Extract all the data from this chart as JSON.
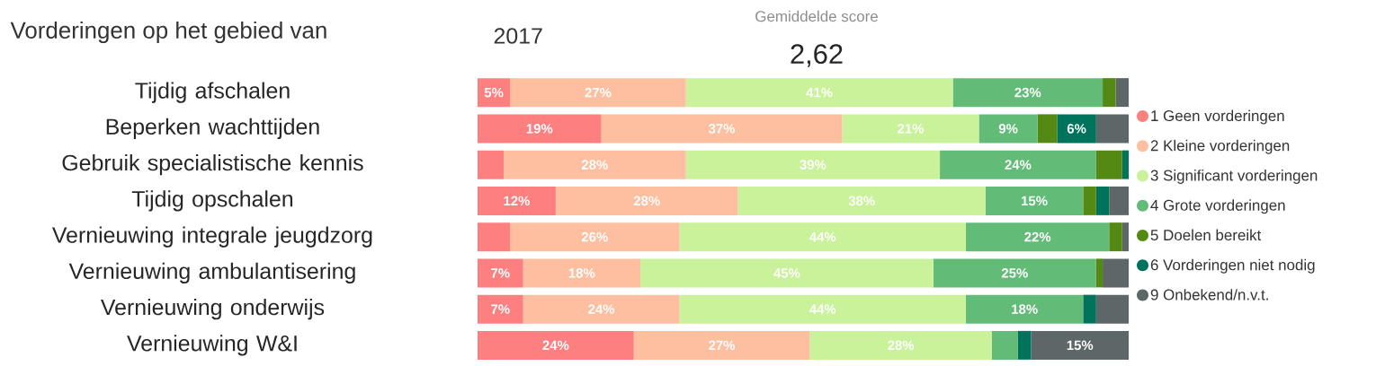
{
  "chart_data": {
    "type": "bar",
    "orientation": "horizontal",
    "stacked": true,
    "title": "Vorderingen op het gebied van",
    "subtitle": "2017",
    "annotations": [
      "Gemiddelde score",
      "2,62"
    ],
    "categories": [
      "Tijdig afschalen",
      "Beperken wachttijden",
      "Gebruik specialistische kennis",
      "Tijdig opschalen",
      "Vernieuwing integrale jeugdzorg",
      "Vernieuwing ambulantisering",
      "Vernieuwing onderwijs",
      "Vernieuwing W&I"
    ],
    "series": [
      {
        "name": "1 Geen vorderingen",
        "color": "#fd7f7f",
        "values": [
          5,
          19,
          4,
          12,
          5,
          7,
          7,
          24
        ],
        "value_labels": [
          "5%",
          "19%",
          null,
          "12%",
          null,
          "7%",
          "7%",
          "24%"
        ]
      },
      {
        "name": "2 Kleine vorderingen",
        "color": "#fdbf9f",
        "values": [
          27,
          37,
          28,
          28,
          26,
          18,
          24,
          27
        ],
        "value_labels": [
          "27%",
          "37%",
          "28%",
          "28%",
          "26%",
          "18%",
          "24%",
          "27%"
        ]
      },
      {
        "name": "3 Significant vorderingen",
        "color": "#c9f29a",
        "values": [
          41,
          21,
          39,
          38,
          44,
          45,
          44,
          28
        ],
        "value_labels": [
          "41%",
          "21%",
          "39%",
          "38%",
          "44%",
          "45%",
          "44%",
          "28%"
        ]
      },
      {
        "name": "4 Grote vorderingen",
        "color": "#63bb78",
        "values": [
          23,
          9,
          24,
          15,
          22,
          25,
          18,
          4
        ],
        "value_labels": [
          "23%",
          "9%",
          "24%",
          "15%",
          "22%",
          "25%",
          "18%",
          null
        ]
      },
      {
        "name": "5 Doelen bereikt",
        "color": "#548a13",
        "values": [
          2,
          3,
          4,
          2,
          2,
          1,
          0,
          0
        ]
      },
      {
        "name": "6 Vorderingen niet nodig",
        "color": "#00735d",
        "values": [
          0,
          6,
          1,
          2,
          0,
          0,
          2,
          2
        ],
        "value_labels": [
          null,
          "6%",
          null,
          null,
          null,
          null,
          null,
          null
        ]
      },
      {
        "name": "9 Onbekend/n.v.t.",
        "color": "#5e6768",
        "values": [
          2,
          5,
          0,
          3,
          1,
          4,
          5,
          15
        ],
        "value_labels": [
          null,
          null,
          null,
          null,
          null,
          null,
          null,
          "15%"
        ]
      }
    ],
    "xlim": [
      0,
      100
    ],
    "tick_labels": "y",
    "legend": "right"
  }
}
